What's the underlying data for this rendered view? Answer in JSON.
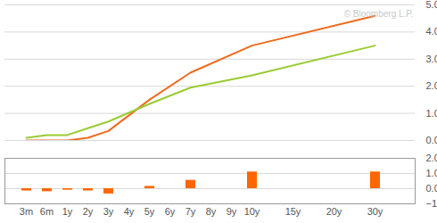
{
  "chart_data": [
    {
      "type": "line",
      "annotations": [
        "© Bloomberg L.P."
      ],
      "categories": [
        "3m",
        "6m",
        "1y",
        "2y",
        "3y",
        "4y",
        "5y",
        "6y",
        "7y",
        "8y",
        "9y",
        "10y",
        null,
        "15y",
        null,
        "20y",
        null,
        "30y"
      ],
      "series": [
        {
          "color": "#ee6a1e",
          "values": [
            0.0,
            0.0,
            0.0,
            0.1,
            0.35,
            null,
            1.5,
            null,
            2.5,
            null,
            null,
            3.5,
            null,
            null,
            null,
            null,
            null,
            4.6
          ]
        },
        {
          "color": "#99cc33",
          "values": [
            0.1,
            0.2,
            0.2,
            0.45,
            0.7,
            null,
            1.35,
            null,
            1.95,
            null,
            null,
            2.4,
            null,
            null,
            null,
            null,
            null,
            3.5
          ]
        }
      ],
      "ylim": [
        0,
        5
      ],
      "yticks": [
        0,
        1,
        2,
        3,
        4,
        5
      ],
      "grid": true,
      "tick_labels": "y"
    },
    {
      "type": "bar",
      "categories": [
        "3m",
        "6m",
        "1y",
        "2y",
        "3y",
        "4y",
        "5y",
        "6y",
        "7y",
        "8y",
        "9y",
        "10y",
        null,
        "15y",
        null,
        "20y",
        null,
        "30y"
      ],
      "values": [
        -0.15,
        -0.2,
        -0.1,
        -0.15,
        -0.35,
        null,
        0.15,
        null,
        0.55,
        null,
        null,
        1.1,
        null,
        null,
        null,
        null,
        null,
        1.1
      ],
      "color": "#ff6600",
      "ylim": [
        -1,
        2
      ],
      "yticks": [
        -1,
        0,
        1,
        2
      ],
      "grid": true
    }
  ]
}
